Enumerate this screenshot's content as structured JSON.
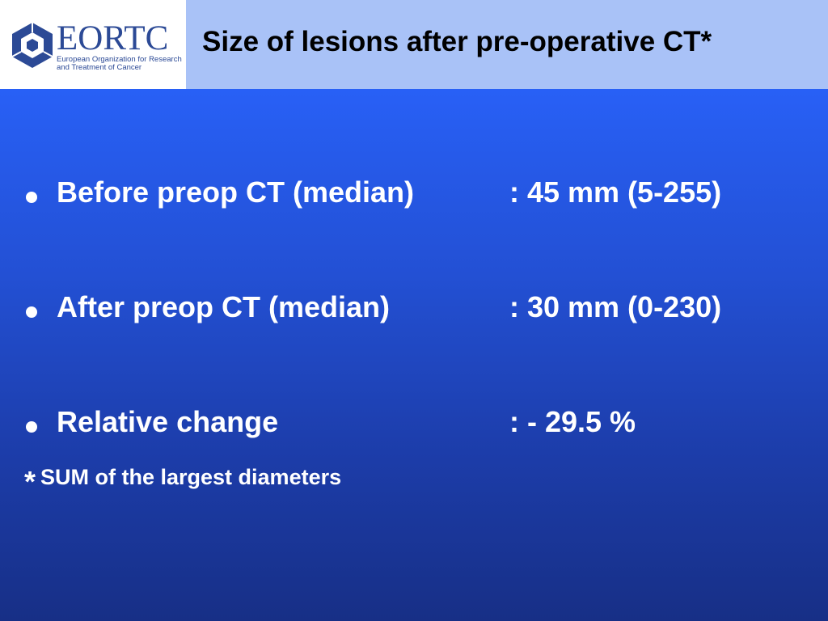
{
  "header": {
    "logo": {
      "wordmark": "EORTC",
      "subtitle": "European Organization for Research and Treatment of Cancer",
      "color": "#2c4a96"
    },
    "title": "Size of lesions after pre-operative CT*",
    "background": "#a9c2f7"
  },
  "bullets": [
    {
      "label": "Before preop CT (median)",
      "value": ": 45 mm (5-255)"
    },
    {
      "label": "After preop CT (median)",
      "value": ": 30 mm (0-230)"
    },
    {
      "label": "Relative change",
      "value": ": - 29.5 %"
    }
  ],
  "footnote": {
    "marker": "*",
    "text": "SUM of the largest diameters"
  },
  "colors": {
    "content_top": "#2860f6",
    "content_bottom": "#172f86",
    "text": "#ffffff"
  }
}
